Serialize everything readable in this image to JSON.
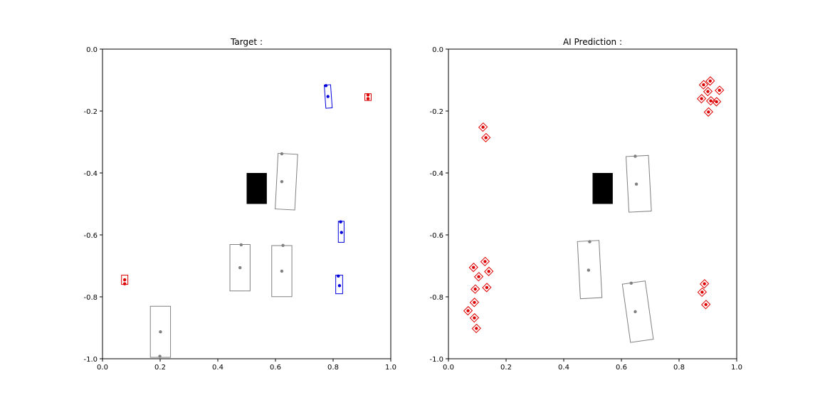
{
  "chart_data": [
    {
      "type": "scatter",
      "title": "Target :",
      "xlim": [
        0.0,
        1.0
      ],
      "ylim": [
        -1.0,
        0.0
      ],
      "xticks": [
        "0.0",
        "0.2",
        "0.4",
        "0.6",
        "0.8",
        "1.0"
      ],
      "yticks": [
        "0.0",
        "-0.2",
        "-0.4",
        "-0.6",
        "-0.8",
        "-1.0"
      ],
      "obstacle": {
        "x0": 0.5,
        "x1": 0.57,
        "y0": -0.5,
        "y1": -0.4,
        "color": "#000000"
      },
      "objects": [
        {
          "color": "#808080",
          "cx": 0.638,
          "cy": -0.428,
          "w": 0.068,
          "h": 0.18,
          "angle": 3,
          "pts": [
            [
              0.622,
              -0.338
            ],
            [
              0.622,
              -0.428
            ]
          ]
        },
        {
          "color": "#808080",
          "cx": 0.477,
          "cy": -0.706,
          "w": 0.07,
          "h": 0.15,
          "angle": 0,
          "pts": [
            [
              0.481,
              -0.632
            ],
            [
              0.477,
              -0.706
            ]
          ]
        },
        {
          "color": "#808080",
          "cx": 0.622,
          "cy": -0.717,
          "w": 0.07,
          "h": 0.165,
          "angle": 0,
          "pts": [
            [
              0.626,
              -0.634
            ],
            [
              0.622,
              -0.717
            ]
          ]
        },
        {
          "color": "#808080",
          "cx": 0.201,
          "cy": -0.913,
          "w": 0.07,
          "h": 0.165,
          "angle": 0,
          "pts": [
            [
              0.201,
              -0.913
            ],
            [
              0.199,
              -0.992
            ]
          ]
        },
        {
          "color": "#0000dd",
          "cx": 0.783,
          "cy": -0.153,
          "w": 0.022,
          "h": 0.075,
          "angle": -4,
          "pts": [
            [
              0.775,
              -0.118
            ],
            [
              0.782,
              -0.153
            ]
          ]
        },
        {
          "color": "#0000dd",
          "cx": 0.828,
          "cy": -0.59,
          "w": 0.02,
          "h": 0.068,
          "angle": 0,
          "pts": [
            [
              0.826,
              -0.558
            ],
            [
              0.829,
              -0.592
            ]
          ]
        },
        {
          "color": "#0000dd",
          "cx": 0.821,
          "cy": -0.76,
          "w": 0.024,
          "h": 0.06,
          "angle": 0,
          "pts": [
            [
              0.818,
              -0.733
            ],
            [
              0.822,
              -0.764
            ]
          ]
        },
        {
          "color": "#dd0000",
          "cx": 0.921,
          "cy": -0.155,
          "w": 0.022,
          "h": 0.022,
          "angle": 0,
          "pts": [
            [
              0.921,
              -0.148
            ],
            [
              0.921,
              -0.16
            ]
          ]
        },
        {
          "color": "#dd0000",
          "cx": 0.077,
          "cy": -0.745,
          "w": 0.022,
          "h": 0.03,
          "angle": 0,
          "pts": [
            [
              0.077,
              -0.745
            ],
            [
              0.077,
              -0.758
            ]
          ]
        }
      ]
    },
    {
      "type": "scatter",
      "title": "AI Prediction :",
      "xlim": [
        0.0,
        1.0
      ],
      "ylim": [
        -1.0,
        0.0
      ],
      "xticks": [
        "0.0",
        "0.2",
        "0.4",
        "0.6",
        "0.8",
        "1.0"
      ],
      "yticks": [
        "0.0",
        "-0.2",
        "-0.4",
        "-0.6",
        "-0.8",
        "-1.0"
      ],
      "obstacle": {
        "x0": 0.5,
        "x1": 0.57,
        "y0": -0.5,
        "y1": -0.4,
        "color": "#000000"
      },
      "objects": [
        {
          "color": "#808080",
          "cx": 0.66,
          "cy": -0.435,
          "w": 0.078,
          "h": 0.18,
          "angle": -3,
          "pts": [
            [
              0.648,
              -0.346
            ],
            [
              0.652,
              -0.436
            ]
          ]
        },
        {
          "color": "#808080",
          "cx": 0.49,
          "cy": -0.712,
          "w": 0.075,
          "h": 0.185,
          "angle": -3,
          "pts": [
            [
              0.49,
              -0.622
            ],
            [
              0.486,
              -0.714
            ]
          ]
        },
        {
          "color": "#808080",
          "cx": 0.657,
          "cy": -0.848,
          "w": 0.08,
          "h": 0.19,
          "angle": -8,
          "pts": [
            [
              0.634,
              -0.756
            ],
            [
              0.648,
              -0.848
            ]
          ]
        },
        {
          "color": "#dd0000",
          "cx": 0.12,
          "cy": -0.252,
          "w": 0.02,
          "h": 0.02,
          "angle": 45,
          "pts": [
            [
              0.12,
              -0.252
            ]
          ]
        },
        {
          "color": "#dd0000",
          "cx": 0.13,
          "cy": -0.286,
          "w": 0.02,
          "h": 0.02,
          "angle": 45,
          "pts": [
            [
              0.13,
              -0.286
            ]
          ]
        },
        {
          "color": "#dd0000",
          "cx": 0.087,
          "cy": -0.705,
          "w": 0.02,
          "h": 0.02,
          "angle": 45,
          "pts": [
            [
              0.087,
              -0.705
            ]
          ]
        },
        {
          "color": "#dd0000",
          "cx": 0.127,
          "cy": -0.686,
          "w": 0.02,
          "h": 0.02,
          "angle": 45,
          "pts": [
            [
              0.127,
              -0.686
            ]
          ]
        },
        {
          "color": "#dd0000",
          "cx": 0.105,
          "cy": -0.735,
          "w": 0.02,
          "h": 0.02,
          "angle": 45,
          "pts": [
            [
              0.105,
              -0.735
            ]
          ]
        },
        {
          "color": "#dd0000",
          "cx": 0.14,
          "cy": -0.718,
          "w": 0.02,
          "h": 0.02,
          "angle": 45,
          "pts": [
            [
              0.14,
              -0.718
            ]
          ]
        },
        {
          "color": "#dd0000",
          "cx": 0.093,
          "cy": -0.775,
          "w": 0.02,
          "h": 0.02,
          "angle": 45,
          "pts": [
            [
              0.093,
              -0.775
            ]
          ]
        },
        {
          "color": "#dd0000",
          "cx": 0.133,
          "cy": -0.77,
          "w": 0.02,
          "h": 0.02,
          "angle": 45,
          "pts": [
            [
              0.133,
              -0.77
            ]
          ]
        },
        {
          "color": "#dd0000",
          "cx": 0.09,
          "cy": -0.818,
          "w": 0.02,
          "h": 0.02,
          "angle": 45,
          "pts": [
            [
              0.09,
              -0.818
            ]
          ]
        },
        {
          "color": "#dd0000",
          "cx": 0.068,
          "cy": -0.845,
          "w": 0.02,
          "h": 0.02,
          "angle": 45,
          "pts": [
            [
              0.068,
              -0.845
            ]
          ]
        },
        {
          "color": "#dd0000",
          "cx": 0.09,
          "cy": -0.868,
          "w": 0.02,
          "h": 0.02,
          "angle": 45,
          "pts": [
            [
              0.09,
              -0.868
            ]
          ]
        },
        {
          "color": "#dd0000",
          "cx": 0.097,
          "cy": -0.902,
          "w": 0.02,
          "h": 0.02,
          "angle": 45,
          "pts": [
            [
              0.097,
              -0.902
            ]
          ]
        },
        {
          "color": "#dd0000",
          "cx": 0.885,
          "cy": -0.115,
          "w": 0.02,
          "h": 0.02,
          "angle": 45,
          "pts": [
            [
              0.885,
              -0.115
            ]
          ]
        },
        {
          "color": "#dd0000",
          "cx": 0.908,
          "cy": -0.103,
          "w": 0.02,
          "h": 0.02,
          "angle": 45,
          "pts": [
            [
              0.908,
              -0.103
            ]
          ]
        },
        {
          "color": "#dd0000",
          "cx": 0.9,
          "cy": -0.137,
          "w": 0.02,
          "h": 0.02,
          "angle": 45,
          "pts": [
            [
              0.9,
              -0.137
            ]
          ]
        },
        {
          "color": "#dd0000",
          "cx": 0.94,
          "cy": -0.133,
          "w": 0.02,
          "h": 0.02,
          "angle": 45,
          "pts": [
            [
              0.94,
              -0.133
            ]
          ]
        },
        {
          "color": "#dd0000",
          "cx": 0.878,
          "cy": -0.16,
          "w": 0.02,
          "h": 0.02,
          "angle": 45,
          "pts": [
            [
              0.878,
              -0.16
            ]
          ]
        },
        {
          "color": "#dd0000",
          "cx": 0.91,
          "cy": -0.167,
          "w": 0.02,
          "h": 0.02,
          "angle": 45,
          "pts": [
            [
              0.91,
              -0.167
            ]
          ]
        },
        {
          "color": "#dd0000",
          "cx": 0.93,
          "cy": -0.17,
          "w": 0.02,
          "h": 0.02,
          "angle": 45,
          "pts": [
            [
              0.93,
              -0.17
            ]
          ]
        },
        {
          "color": "#dd0000",
          "cx": 0.902,
          "cy": -0.203,
          "w": 0.02,
          "h": 0.02,
          "angle": 45,
          "pts": [
            [
              0.902,
              -0.203
            ]
          ]
        },
        {
          "color": "#dd0000",
          "cx": 0.888,
          "cy": -0.758,
          "w": 0.02,
          "h": 0.02,
          "angle": 45,
          "pts": [
            [
              0.888,
              -0.758
            ]
          ]
        },
        {
          "color": "#dd0000",
          "cx": 0.88,
          "cy": -0.785,
          "w": 0.02,
          "h": 0.02,
          "angle": 45,
          "pts": [
            [
              0.88,
              -0.785
            ]
          ]
        },
        {
          "color": "#dd0000",
          "cx": 0.893,
          "cy": -0.825,
          "w": 0.02,
          "h": 0.02,
          "angle": 45,
          "pts": [
            [
              0.893,
              -0.825
            ]
          ]
        }
      ]
    }
  ]
}
